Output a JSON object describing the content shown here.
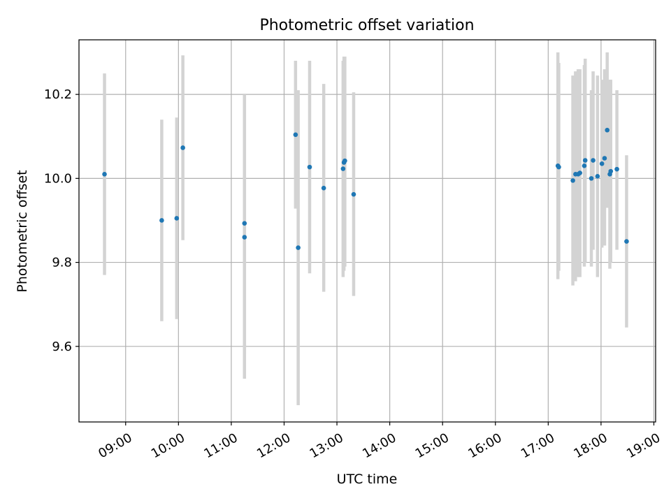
{
  "chart_data": {
    "type": "scatter",
    "title": "Photometric offset variation",
    "xlabel": "UTC time",
    "ylabel": "Photometric offset",
    "x_is_time": true,
    "xlim": [
      "08:07",
      "19:02"
    ],
    "ylim": [
      9.42,
      10.33
    ],
    "xticks": [
      "09:00",
      "10:00",
      "11:00",
      "12:00",
      "13:00",
      "14:00",
      "15:00",
      "16:00",
      "17:00",
      "18:00",
      "19:00"
    ],
    "yticks": [
      "9.6",
      "9.8",
      "10.0",
      "10.2"
    ],
    "grid": true,
    "colors": {
      "point": "#1f77b4",
      "errorbar": "#d3d3d3",
      "grid": "#b0b0b0",
      "axes": "#000000"
    },
    "points": [
      {
        "x": "08:36",
        "y": 10.01,
        "ylo": 9.77,
        "yhi": 10.25
      },
      {
        "x": "09:41",
        "y": 9.9,
        "ylo": 9.66,
        "yhi": 10.14
      },
      {
        "x": "09:58",
        "y": 9.905,
        "ylo": 9.665,
        "yhi": 10.145
      },
      {
        "x": "10:05",
        "y": 10.073,
        "ylo": 9.853,
        "yhi": 10.293
      },
      {
        "x": "11:15",
        "y": 9.893,
        "ylo": 9.583,
        "yhi": 10.2
      },
      {
        "x": "11:15",
        "y": 9.86,
        "ylo": 9.523,
        "yhi": 10.197
      },
      {
        "x": "12:13",
        "y": 10.104,
        "ylo": 9.928,
        "yhi": 10.28
      },
      {
        "x": "12:16",
        "y": 9.835,
        "ylo": 9.46,
        "yhi": 10.21
      },
      {
        "x": "12:29",
        "y": 10.027,
        "ylo": 9.774,
        "yhi": 10.28
      },
      {
        "x": "12:45",
        "y": 9.977,
        "ylo": 9.73,
        "yhi": 10.225
      },
      {
        "x": "13:07",
        "y": 10.023,
        "ylo": 9.765,
        "yhi": 10.28
      },
      {
        "x": "13:08",
        "y": 10.038,
        "ylo": 9.78,
        "yhi": 10.29
      },
      {
        "x": "13:09",
        "y": 10.042,
        "ylo": 9.79,
        "yhi": 10.29
      },
      {
        "x": "13:19",
        "y": 9.962,
        "ylo": 9.72,
        "yhi": 10.205
      },
      {
        "x": "17:11",
        "y": 10.03,
        "ylo": 9.76,
        "yhi": 10.3
      },
      {
        "x": "17:12",
        "y": 10.027,
        "ylo": 9.78,
        "yhi": 10.275
      },
      {
        "x": "17:28",
        "y": 9.995,
        "ylo": 9.745,
        "yhi": 10.245
      },
      {
        "x": "17:31",
        "y": 10.01,
        "ylo": 9.755,
        "yhi": 10.255
      },
      {
        "x": "17:34",
        "y": 10.01,
        "ylo": 9.765,
        "yhi": 10.26
      },
      {
        "x": "17:36",
        "y": 10.013,
        "ylo": 9.765,
        "yhi": 10.26
      },
      {
        "x": "17:41",
        "y": 10.03,
        "ylo": 9.79,
        "yhi": 10.27
      },
      {
        "x": "17:42",
        "y": 10.043,
        "ylo": 9.8,
        "yhi": 10.285
      },
      {
        "x": "17:49",
        "y": 10.0,
        "ylo": 9.79,
        "yhi": 10.21
      },
      {
        "x": "17:51",
        "y": 10.043,
        "ylo": 9.83,
        "yhi": 10.255
      },
      {
        "x": "17:56",
        "y": 10.005,
        "ylo": 9.765,
        "yhi": 10.245
      },
      {
        "x": "18:01",
        "y": 10.035,
        "ylo": 9.835,
        "yhi": 10.235
      },
      {
        "x": "18:04",
        "y": 10.048,
        "ylo": 9.84,
        "yhi": 10.26
      },
      {
        "x": "18:07",
        "y": 10.115,
        "ylo": 9.93,
        "yhi": 10.3
      },
      {
        "x": "18:10",
        "y": 10.01,
        "ylo": 9.785,
        "yhi": 10.235
      },
      {
        "x": "18:11",
        "y": 10.017,
        "ylo": 9.8,
        "yhi": 10.235
      },
      {
        "x": "18:18",
        "y": 10.022,
        "ylo": 9.83,
        "yhi": 10.21
      },
      {
        "x": "18:29",
        "y": 9.85,
        "ylo": 9.645,
        "yhi": 10.055
      }
    ]
  }
}
